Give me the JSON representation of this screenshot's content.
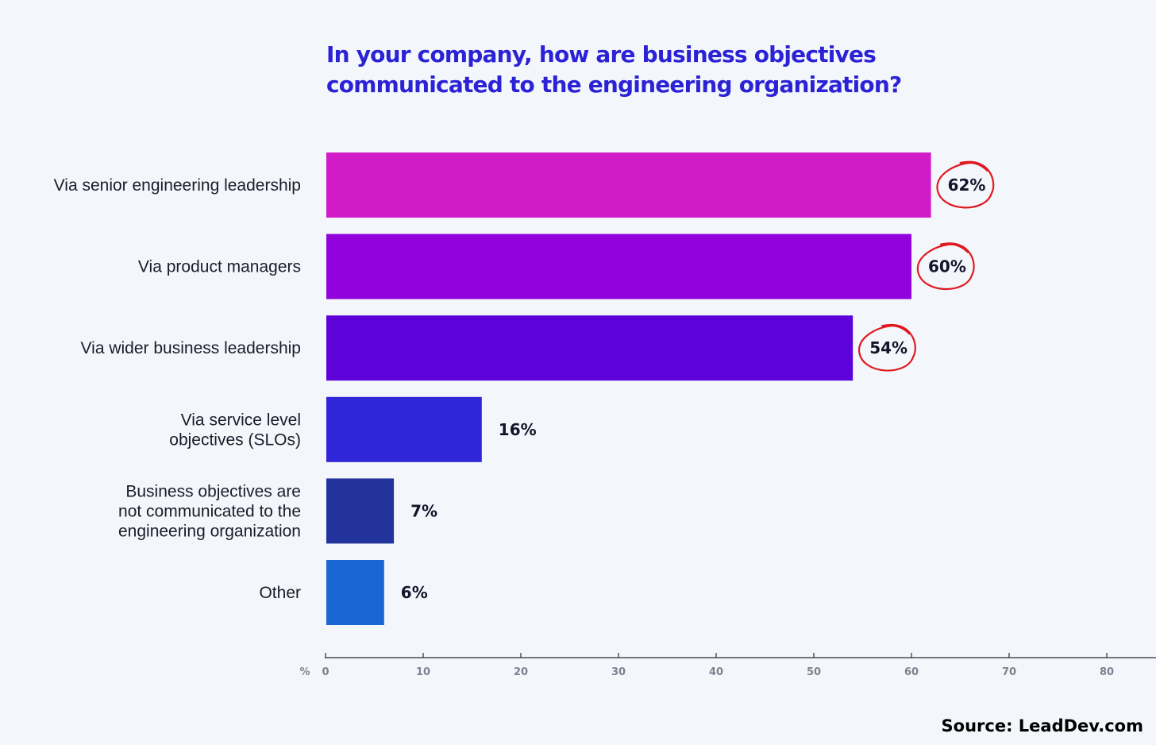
{
  "chart_data": {
    "type": "bar",
    "orientation": "horizontal",
    "title": "In your company, how are business objectives communicated to the engineering organization?",
    "title_lines": [
      "In your company, how are business objectives",
      "communicated to the engineering organization?"
    ],
    "categories": [
      [
        "Via senior engineering leadership"
      ],
      [
        "Via product managers"
      ],
      [
        "Via wider business leadership"
      ],
      [
        "Via service level",
        "objectives (SLOs)"
      ],
      [
        "Business objectives are",
        "not communicated to the",
        "engineering organization"
      ],
      [
        "Other"
      ]
    ],
    "values": [
      62,
      60,
      54,
      16,
      7,
      6
    ],
    "value_labels": [
      "62%",
      "60%",
      "54%",
      "16%",
      "7%",
      "6%"
    ],
    "highlighted": [
      true,
      true,
      true,
      false,
      false,
      false
    ],
    "colors": [
      "#d11ac8",
      "#9202dd",
      "#5d02d9",
      "#2e26d8",
      "#22349b",
      "#1a66d4"
    ],
    "highlight_color": "#e0191f",
    "xlabel": "%",
    "xlim": [
      0,
      85
    ],
    "xticks": [
      0,
      10,
      20,
      30,
      40,
      50,
      60,
      70,
      80
    ],
    "grid": false
  },
  "source": "Source: LeadDev.com"
}
